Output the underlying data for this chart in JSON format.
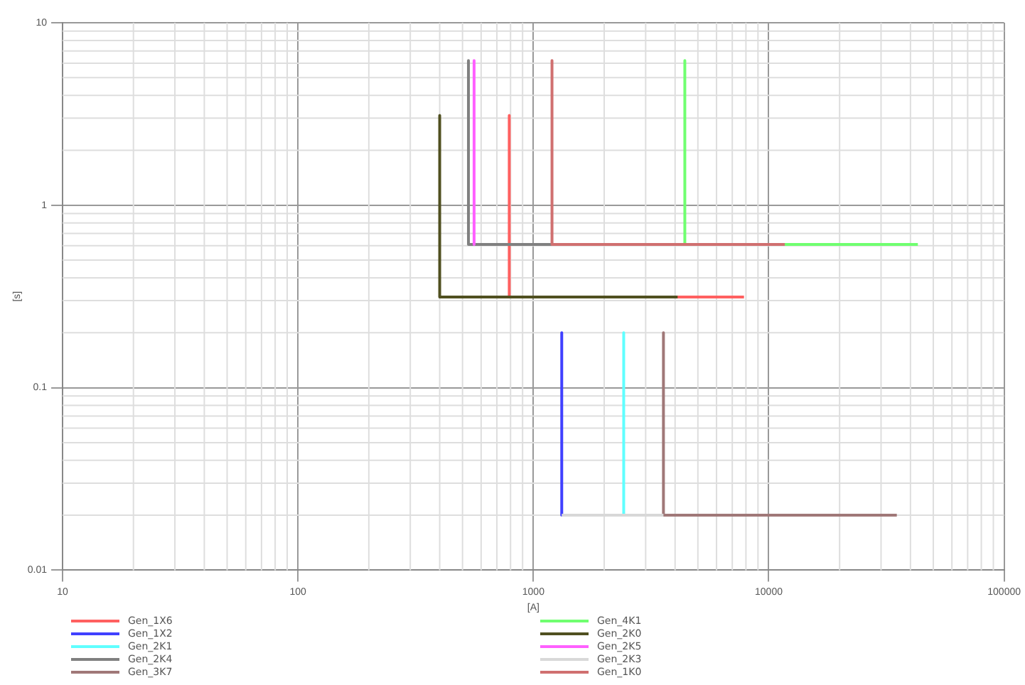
{
  "chart_data": {
    "type": "line",
    "xlabel": "[A]",
    "ylabel": "[s]",
    "log": "xy",
    "grid": true,
    "legend": "bottom",
    "marker": "none",
    "line_style": "solid",
    "xlim": [
      10,
      100000
    ],
    "xticks": [
      10,
      100,
      1000,
      10000,
      100000
    ],
    "ylim": [
      0.01,
      10
    ],
    "yticks": [
      0.01,
      0.1,
      1,
      10
    ],
    "series": [
      {
        "name": "Gen_1X6",
        "color": "#ff6060",
        "x": [
          790,
          790,
          7850
        ],
        "values": [
          3.1,
          0.314,
          0.314
        ]
      },
      {
        "name": "Gen_1X2",
        "color": "#4040ff",
        "x": [
          1320,
          1320
        ],
        "values": [
          0.2,
          0.02
        ]
      },
      {
        "name": "Gen_2K1",
        "color": "#60ffff",
        "x": [
          2420,
          2420
        ],
        "values": [
          0.2,
          0.02
        ]
      },
      {
        "name": "Gen_2K4",
        "color": "#808080",
        "x": [
          530,
          530,
          1200
        ],
        "values": [
          6.2,
          0.61,
          0.61
        ]
      },
      {
        "name": "Gen_3K7",
        "color": "#a07878",
        "x": [
          3570,
          3570,
          35000
        ],
        "values": [
          0.2,
          0.02,
          0.02
        ]
      },
      {
        "name": "Gen_4K1",
        "color": "#70ff70",
        "x": [
          4400,
          4400,
          43000
        ],
        "values": [
          6.2,
          0.61,
          0.61
        ]
      },
      {
        "name": "Gen_2K0",
        "color": "#505020",
        "x": [
          400,
          400,
          4100
        ],
        "values": [
          3.1,
          0.314,
          0.314
        ]
      },
      {
        "name": "Gen_2K5",
        "color": "#ff60ff",
        "x": [
          560,
          560
        ],
        "values": [
          6.2,
          0.61
        ]
      },
      {
        "name": "Gen_2K3",
        "color": "#d8d8d8",
        "x": [
          1320,
          3570
        ],
        "values": [
          0.02,
          0.02
        ]
      },
      {
        "name": "Gen_1K0",
        "color": "#d07070",
        "x": [
          1200,
          1200,
          11700
        ],
        "values": [
          6.2,
          0.61,
          0.61
        ]
      }
    ]
  }
}
